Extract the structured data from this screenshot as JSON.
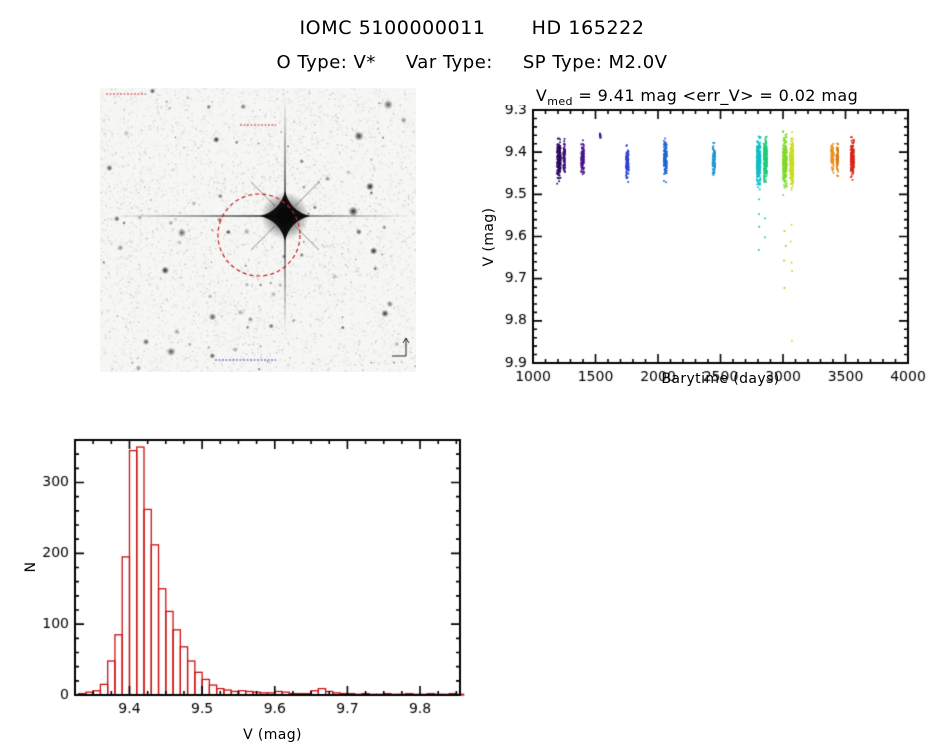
{
  "page": {
    "title_left": "IOMC 5100000011",
    "title_right": "HD 165222",
    "subtitle_otype": "O Type: V*",
    "subtitle_vartype": "Var Type:",
    "subtitle_sptype": "SP Type: M2.0V",
    "background": "#ffffff"
  },
  "finder": {
    "description": "grayscale star-field finding chart with bright central star, diffraction spikes and dashed target circle",
    "circle_color": "#cc2222",
    "annotation_color_red": "#cc3333",
    "annotation_color_blue": "#4444bb"
  },
  "chart_data": [
    {
      "id": "lightcurve",
      "type": "scatter",
      "title_var": "V",
      "title_sub": "med",
      "title_rest": " = 9.41 mag <err_V> = 0.02 mag",
      "xlabel": "Barytime (days)",
      "ylabel": "V (mag)",
      "xlim": [
        1000,
        4000
      ],
      "ylim_top": 9.3,
      "ylim_bottom": 9.9,
      "xticks": [
        1000,
        1500,
        2000,
        2500,
        3000,
        3500,
        4000
      ],
      "yticks": [
        9.3,
        9.4,
        9.5,
        9.6,
        9.7,
        9.8,
        9.9
      ],
      "x_minor": 100,
      "y_minor": 0.02,
      "grid": false,
      "point_size": 1.7,
      "clusters": [
        {
          "x": 1200,
          "w": 30,
          "mean": 9.415,
          "sigma": 0.022,
          "n": 190,
          "color": "#2d0a5e",
          "ymin": 9.345,
          "ymax": 9.495
        },
        {
          "x": 1243,
          "w": 14,
          "mean": 9.41,
          "sigma": 0.018,
          "n": 80,
          "color": "#3d0f78",
          "ymin": 9.35,
          "ymax": 9.48
        },
        {
          "x": 1390,
          "w": 22,
          "mean": 9.415,
          "sigma": 0.019,
          "n": 120,
          "color": "#4a128c",
          "ymin": 9.36,
          "ymax": 9.485
        },
        {
          "x": 1532,
          "w": 10,
          "mean": 9.362,
          "sigma": 0.005,
          "n": 10,
          "color": "#33128f"
        },
        {
          "x": 1748,
          "w": 20,
          "mean": 9.42,
          "sigma": 0.018,
          "n": 110,
          "color": "#2b3fd0",
          "ymin": 9.375,
          "ymax": 9.475
        },
        {
          "x": 2052,
          "w": 24,
          "mean": 9.412,
          "sigma": 0.02,
          "n": 130,
          "color": "#1f66d0",
          "ymin": 9.36,
          "ymax": 9.47
        },
        {
          "x": 2440,
          "w": 20,
          "mean": 9.415,
          "sigma": 0.017,
          "n": 100,
          "color": "#2095d2",
          "ymin": 9.375,
          "ymax": 9.465
        },
        {
          "x": 2798,
          "w": 30,
          "mean": 9.42,
          "sigma": 0.026,
          "n": 280,
          "color": "#0fbfc4",
          "ymin": 9.35,
          "ymax": 9.53,
          "outliers": [
            9.545,
            9.575,
            9.63
          ]
        },
        {
          "x": 2852,
          "w": 26,
          "mean": 9.42,
          "sigma": 0.024,
          "n": 220,
          "color": "#1ecb7c",
          "ymin": 9.35,
          "ymax": 9.52,
          "outliers": [
            9.555,
            9.6
          ]
        },
        {
          "x": 3008,
          "w": 30,
          "mean": 9.42,
          "sigma": 0.027,
          "n": 280,
          "color": "#7fd82e",
          "ymin": 9.345,
          "ymax": 9.545,
          "outliers": [
            9.585,
            9.62,
            9.655,
            9.72
          ]
        },
        {
          "x": 3062,
          "w": 28,
          "mean": 9.422,
          "sigma": 0.026,
          "n": 220,
          "color": "#c8dd20",
          "ymin": 9.35,
          "ymax": 9.54,
          "outliers": [
            9.57,
            9.61,
            9.66,
            9.68,
            9.845
          ]
        },
        {
          "x": 3388,
          "w": 20,
          "mean": 9.41,
          "sigma": 0.017,
          "n": 100,
          "color": "#e8941e",
          "ymin": 9.37,
          "ymax": 9.46
        },
        {
          "x": 3428,
          "w": 14,
          "mean": 9.412,
          "sigma": 0.015,
          "n": 70,
          "color": "#df7a0e",
          "ymin": 9.375,
          "ymax": 9.455
        },
        {
          "x": 3548,
          "w": 26,
          "mean": 9.415,
          "sigma": 0.019,
          "n": 160,
          "color": "#d8241a",
          "ymin": 9.36,
          "ymax": 9.475
        }
      ]
    },
    {
      "id": "histogram",
      "type": "bar",
      "xlabel": "V (mag)",
      "ylabel": "N",
      "xlim": [
        9.325,
        9.855
      ],
      "ylim": [
        0,
        360
      ],
      "xticks": [
        9.4,
        9.5,
        9.6,
        9.7,
        9.8
      ],
      "yticks": [
        0,
        100,
        200,
        300
      ],
      "x_minor": 0.025,
      "y_minor": 20,
      "bin_start": 9.33,
      "bin_width": 0.01,
      "bar_color": "#cc1111",
      "values": [
        2,
        4,
        6,
        15,
        48,
        85,
        195,
        345,
        350,
        262,
        212,
        150,
        118,
        92,
        68,
        48,
        32,
        22,
        14,
        9,
        7,
        5,
        6,
        5,
        4,
        3,
        3,
        5,
        4,
        2,
        2,
        2,
        6,
        9,
        5,
        3,
        2,
        2,
        1,
        2,
        1,
        1,
        2,
        1,
        1,
        2,
        1,
        1,
        2,
        1,
        1,
        2,
        1
      ]
    }
  ]
}
